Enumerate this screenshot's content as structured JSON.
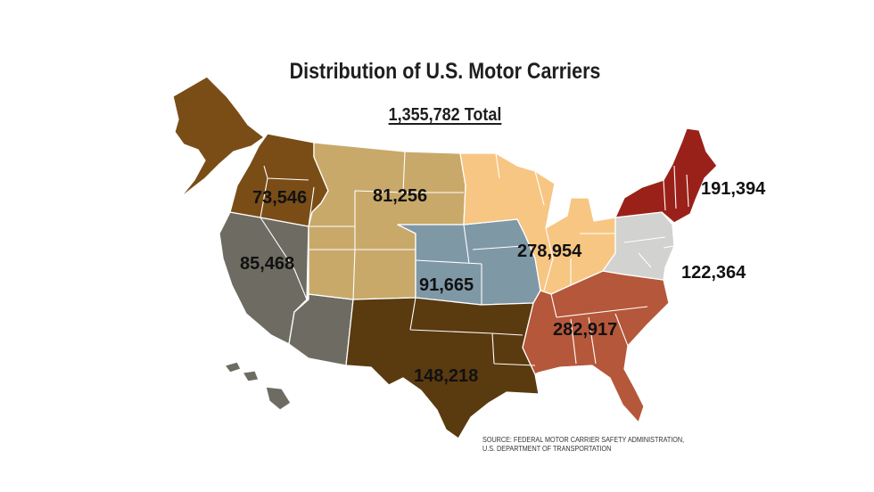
{
  "title": "Distribution of U.S. Motor Carriers",
  "total": "1,355,782 Total",
  "regions": [
    {
      "id": "northwest",
      "value": "73,546",
      "color": "#7a4d17"
    },
    {
      "id": "mountain",
      "value": "81,256",
      "color": "#c8a96a"
    },
    {
      "id": "far-west",
      "value": "85,468",
      "color": "#6e6c62"
    },
    {
      "id": "central-plains",
      "value": "91,665",
      "color": "#7f98a6"
    },
    {
      "id": "south-central",
      "value": "148,218",
      "color": "#5a3a0f"
    },
    {
      "id": "great-lakes",
      "value": "278,954",
      "color": "#f7c683"
    },
    {
      "id": "southeast",
      "value": "282,917",
      "color": "#b5573a"
    },
    {
      "id": "mid-atlantic",
      "value": "122,364",
      "color": "#d2d3d0"
    },
    {
      "id": "northeast",
      "value": "191,394",
      "color": "#9a2119"
    }
  ],
  "source_lines": [
    "SOURCE: FEDERAL MOTOR CARRIER SAFETY ADMINISTRATION,",
    "U.S. DEPARTMENT OF TRANSPORTATION"
  ]
}
